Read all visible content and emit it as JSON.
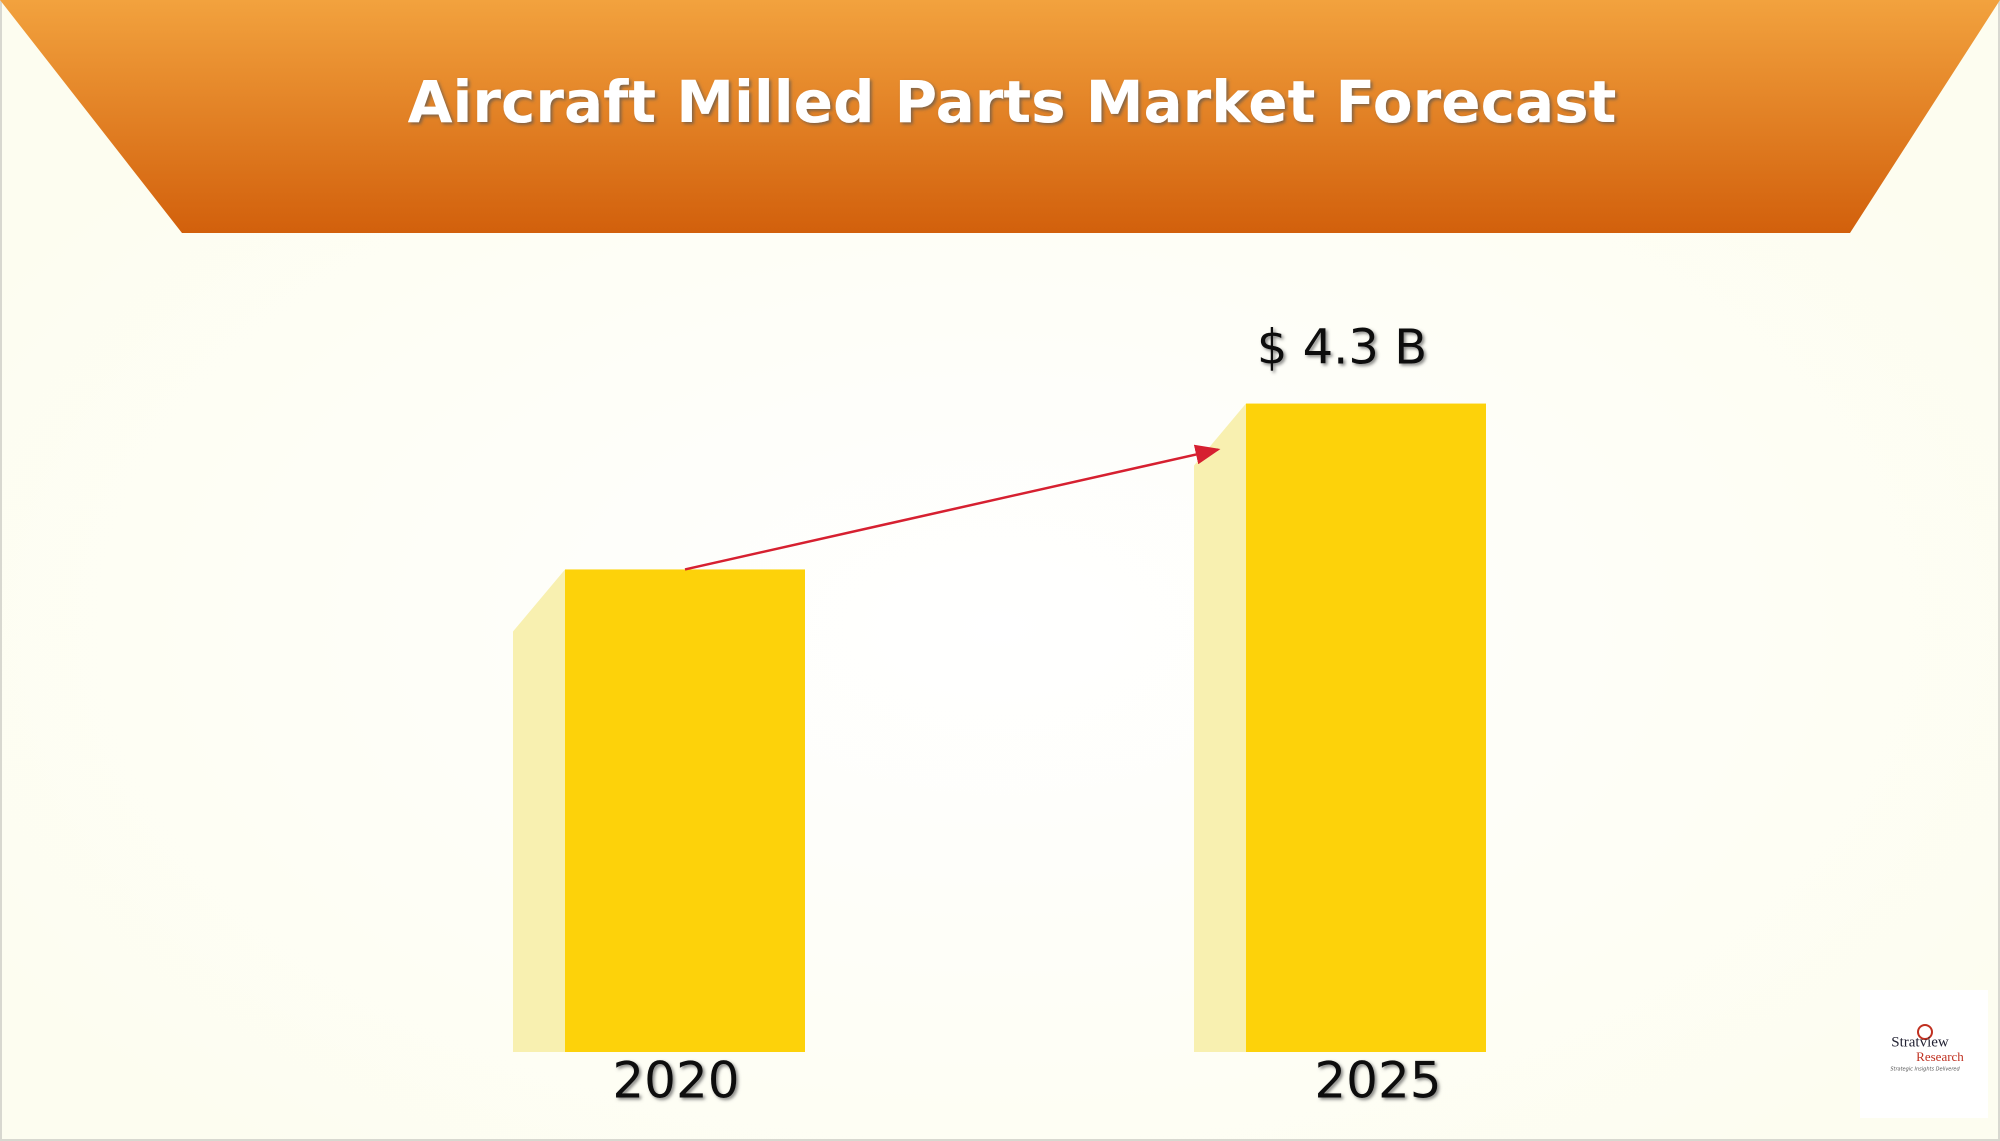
{
  "chart_data": {
    "type": "bar",
    "title": "Aircraft Milled Parts Market Forecast",
    "categories": [
      "2020",
      "2025"
    ],
    "values": [
      3.2,
      4.3
    ],
    "value_labels": [
      null,
      "$ 4.3 B"
    ],
    "color": "#fdd20a",
    "ylim": [
      0,
      5
    ]
  },
  "logo": {
    "name": "Stratview",
    "sub": "Research",
    "tagline": "Strategic Insights Delivered"
  }
}
